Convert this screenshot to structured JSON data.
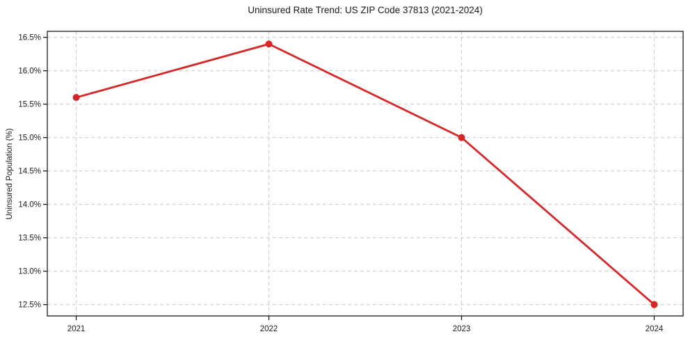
{
  "chart_data": {
    "type": "line",
    "title": "Uninsured Rate Trend: US ZIP Code 37813 (2021-2024)",
    "xlabel": "",
    "ylabel": "Uninsured Population (%)",
    "categories": [
      "2021",
      "2022",
      "2023",
      "2024"
    ],
    "values": [
      15.6,
      16.4,
      15.0,
      12.5
    ],
    "xtick_labels": [
      "2021",
      "2022",
      "2023",
      "2024"
    ],
    "yticks": [
      12.5,
      13.0,
      13.5,
      14.0,
      14.5,
      15.0,
      15.5,
      16.0,
      16.5
    ],
    "ytick_labels": [
      "12.5%",
      "13.0%",
      "13.5%",
      "14.0%",
      "14.5%",
      "15.0%",
      "15.5%",
      "16.0%",
      "16.5%"
    ],
    "ylim": [
      12.33,
      16.59
    ],
    "grid": "dashed-both-axes",
    "legend": "none",
    "colors": {
      "line": "#d62728",
      "marker": "#d62728",
      "grid": "#cccccc",
      "spine": "#1a1a1a",
      "tick_text": "#1a1a1a",
      "background": "#ffffff"
    }
  }
}
